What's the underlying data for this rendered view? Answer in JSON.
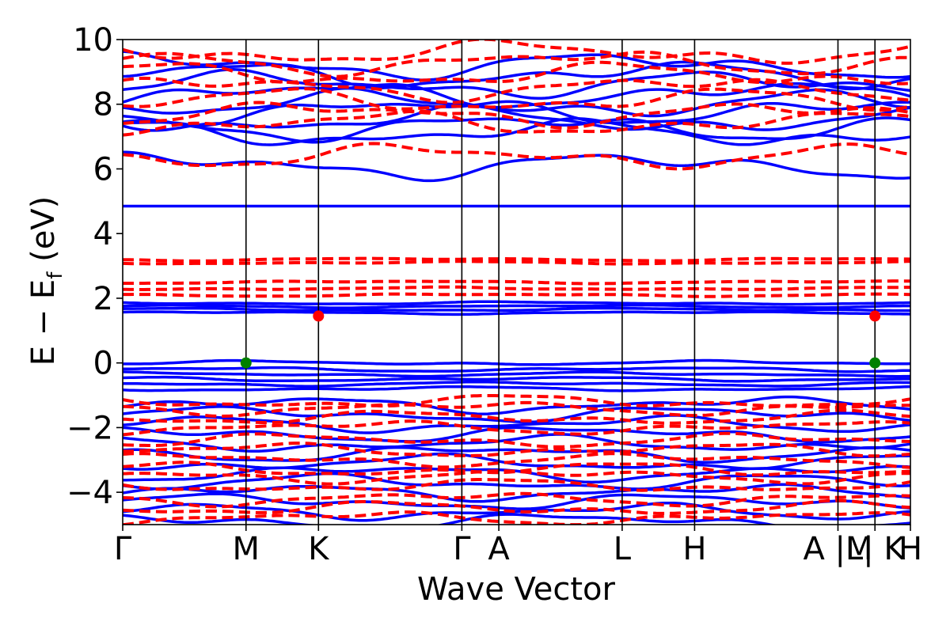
{
  "chart_data": {
    "type": "line",
    "title": "",
    "xlabel": "Wave Vector",
    "ylabel": "E − E_f (eV)",
    "ylabel_main": "E − E",
    "ylabel_sub": "f",
    "ylabel_tail": " (eV)",
    "ylim": [
      -5,
      10
    ],
    "yticks": [
      -4,
      -2,
      0,
      2,
      4,
      6,
      8,
      10
    ],
    "ytick_labels": [
      "−4",
      "−2",
      "0",
      "2",
      "4",
      "6",
      "8",
      "10"
    ],
    "kpath": {
      "labels": [
        "Γ",
        "M",
        "K",
        "Γ",
        "A",
        "L",
        "H",
        "A |M",
        "L| K",
        "H"
      ],
      "positions": [
        0,
        0.8,
        1.27,
        2.2,
        2.44,
        3.24,
        3.71,
        4.64,
        4.88,
        5.11
      ]
    },
    "grid": false,
    "legend": "none",
    "colors": {
      "spin_up": "#0000ff",
      "spin_down": "#ff0000",
      "vbm": "#008000",
      "cbm": "#ff0000"
    },
    "series": [
      {
        "style": "solid",
        "color": "#0000ff",
        "band_groups": [
          {
            "region": "conduction",
            "base": [
              6.1,
              7.1,
              7.3,
              7.5,
              7.8,
              8.0,
              8.3,
              8.6,
              8.9,
              9.2
            ],
            "amplitude": 0.5
          },
          {
            "region": "flat",
            "base": [
              4.85
            ],
            "amplitude": 0.0
          },
          {
            "region": "defect",
            "base": [
              1.55,
              1.65,
              1.75,
              1.85
            ],
            "amplitude": 0.05
          },
          {
            "region": "valence_top",
            "base": [
              0.0,
              -0.2,
              -0.35,
              -0.5,
              -0.65,
              -0.8
            ],
            "amplitude": 0.08
          },
          {
            "region": "valence",
            "base": [
              -1.3,
              -1.6,
              -1.9,
              -2.2,
              -2.5,
              -2.8,
              -3.1,
              -3.4,
              -3.7,
              -4.0,
              -4.3,
              -4.6,
              -4.9
            ],
            "amplitude": 0.3
          }
        ]
      },
      {
        "style": "dashed",
        "color": "#ff0000",
        "band_groups": [
          {
            "region": "conduction",
            "base": [
              6.4,
              7.4,
              7.7,
              8.1,
              8.5,
              8.9,
              9.3,
              9.6
            ],
            "amplitude": 0.45
          },
          {
            "region": "defect_high",
            "base": [
              3.1,
              3.2
            ],
            "amplitude": 0.05
          },
          {
            "region": "defect_mid",
            "base": [
              2.1,
              2.3,
              2.5
            ],
            "amplitude": 0.05
          },
          {
            "region": "valence",
            "base": [
              -1.2,
              -1.4,
              -1.7,
              -2.0,
              -2.4,
              -2.7,
              -3.0,
              -3.3,
              -3.5,
              -3.8,
              -4.2,
              -4.5,
              -4.8
            ],
            "amplitude": 0.25
          }
        ]
      }
    ],
    "markers": [
      {
        "name": "vbm",
        "x": 0.8,
        "y": 0.0,
        "color": "#008000"
      },
      {
        "name": "vbm",
        "x": 4.88,
        "y": 0.0,
        "color": "#008000"
      },
      {
        "name": "cbm",
        "x": 1.27,
        "y": 1.45,
        "color": "#ff0000"
      },
      {
        "name": "cbm",
        "x": 4.88,
        "y": 1.45,
        "color": "#ff0000"
      }
    ]
  }
}
